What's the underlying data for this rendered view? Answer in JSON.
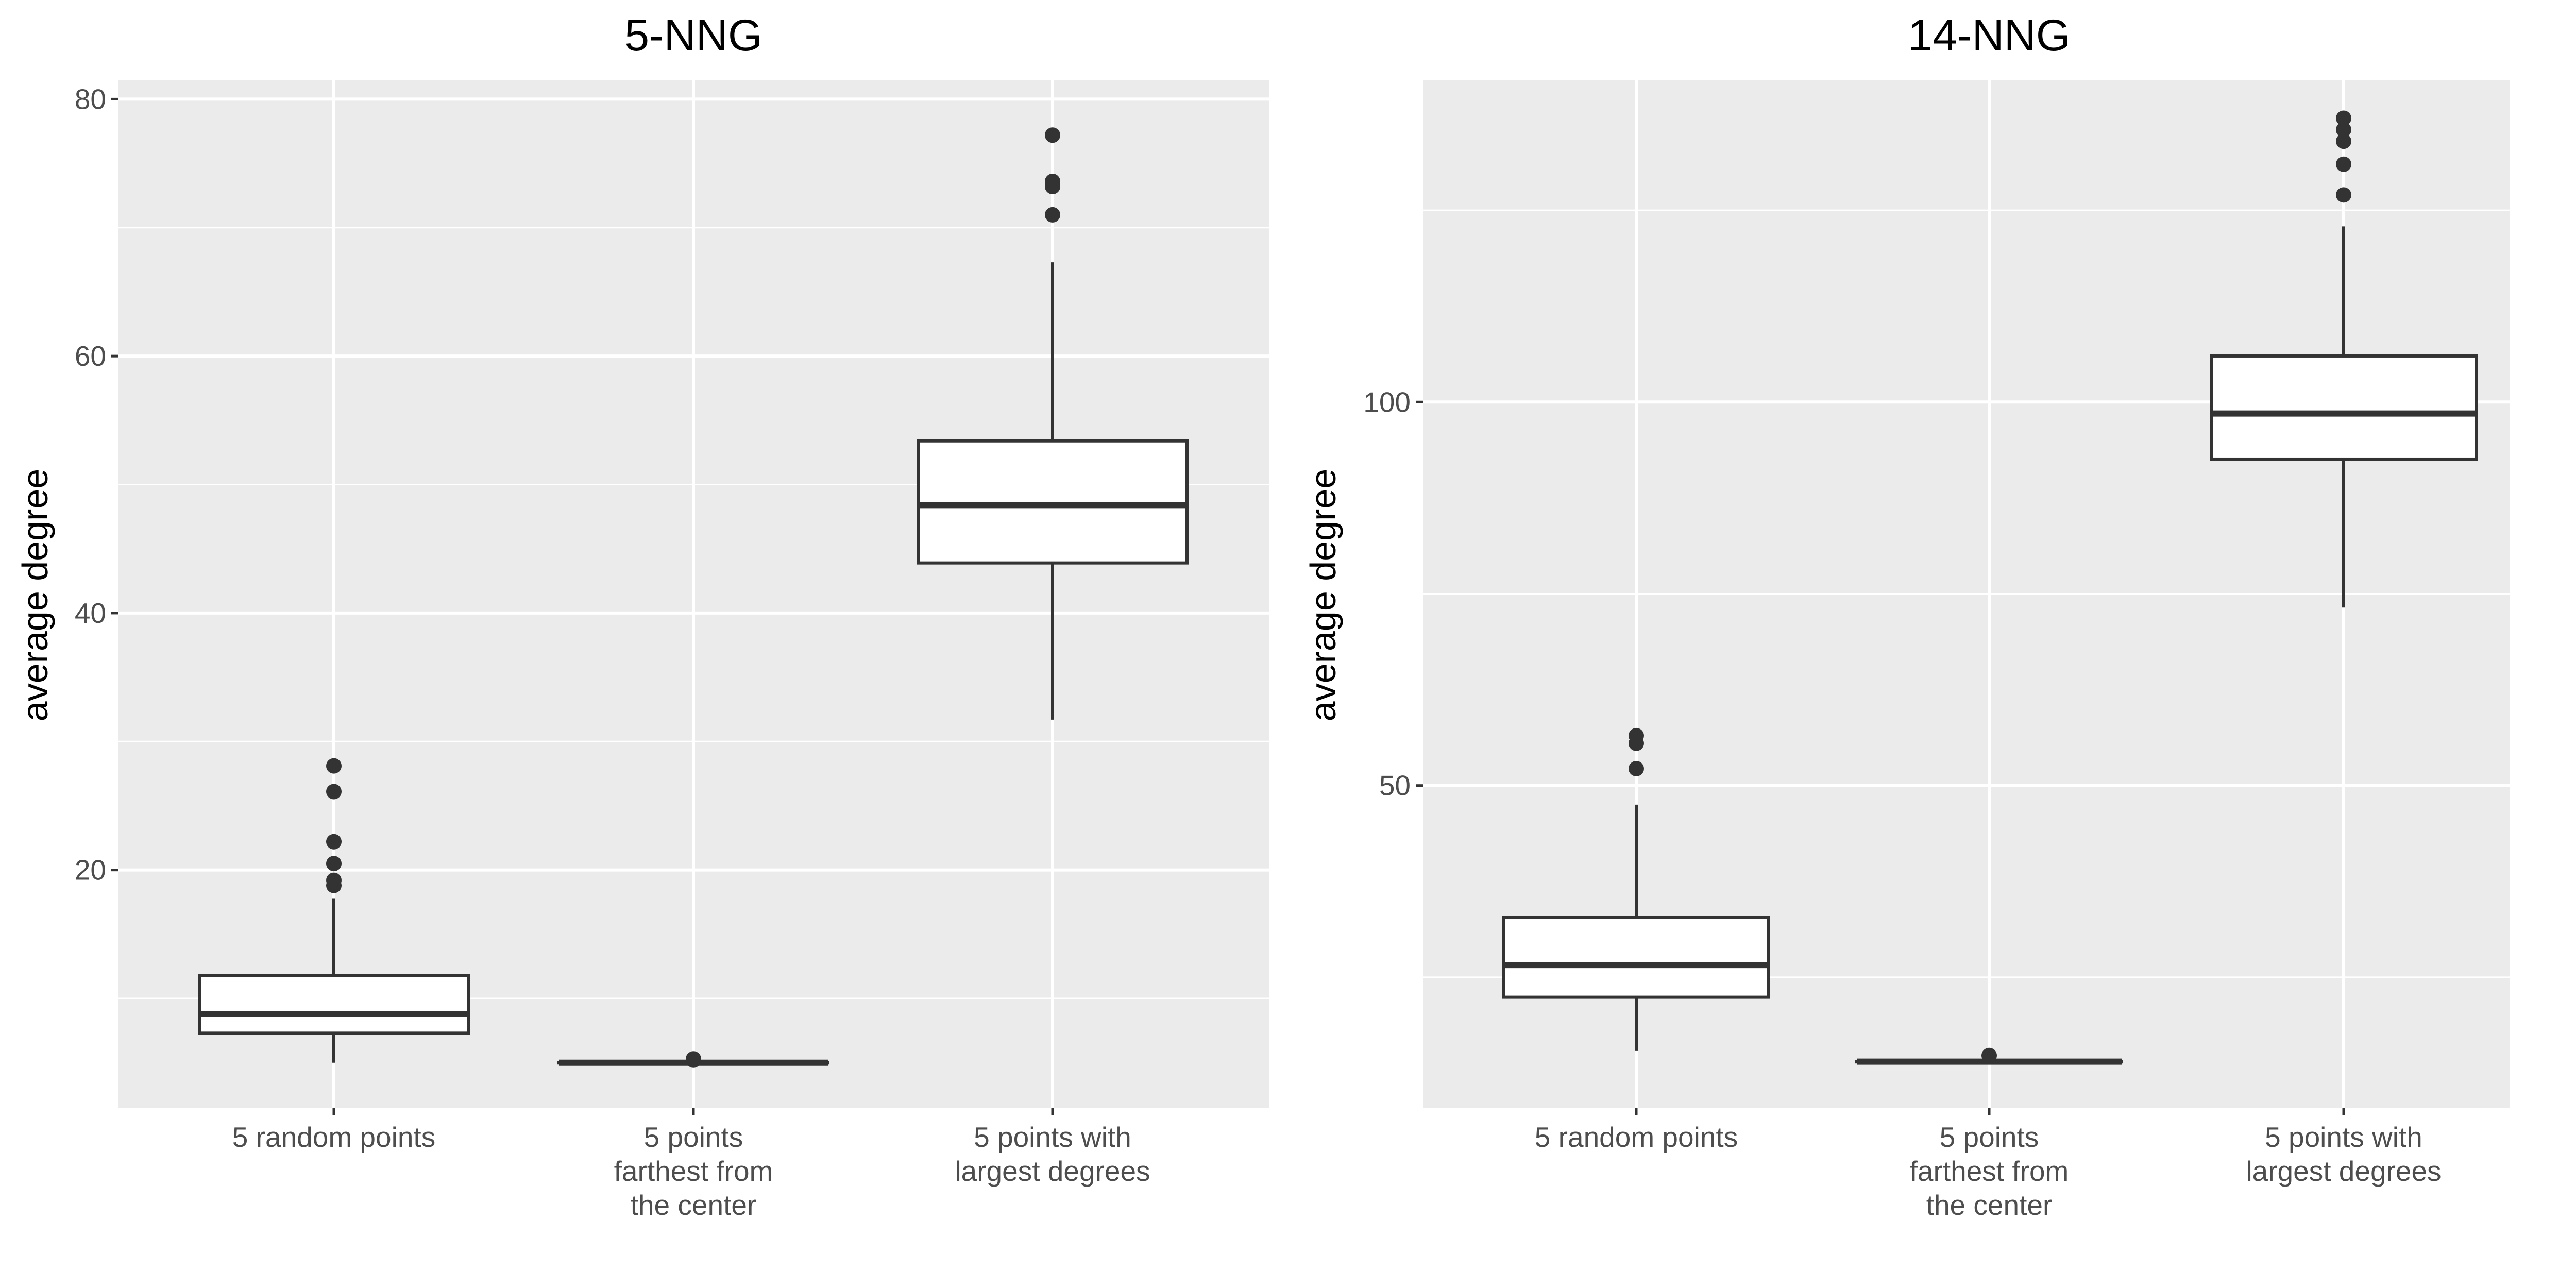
{
  "chart_data": [
    {
      "type": "box",
      "title": "5-NNG",
      "xlabel": "",
      "ylabel": "average degree",
      "ylim": [
        1.5,
        81.5
      ],
      "yticks": [
        20,
        40,
        60,
        80
      ],
      "y_minor_ticks": [
        10,
        30,
        50,
        70
      ],
      "categories": [
        [
          "5 random points"
        ],
        [
          "5 points",
          "farthest from",
          "the center"
        ],
        [
          "5 points with",
          "largest degrees"
        ]
      ],
      "boxes": [
        {
          "lower_whisker": 5.0,
          "q1": 7.3,
          "median": 8.8,
          "q3": 11.8,
          "upper_whisker": 17.8,
          "outliers": [
            18.8,
            19.2,
            20.5,
            22.2,
            26.1,
            28.1
          ]
        },
        {
          "lower_whisker": 5.0,
          "q1": 5.0,
          "median": 5.0,
          "q3": 5.0,
          "upper_whisker": 5.0,
          "outliers": [
            5.2,
            5.3
          ]
        },
        {
          "lower_whisker": 31.7,
          "q1": 43.9,
          "median": 48.4,
          "q3": 53.4,
          "upper_whisker": 67.3,
          "outliers": [
            71.0,
            73.2,
            73.6,
            77.2
          ]
        }
      ]
    },
    {
      "type": "box",
      "title": "14-NNG",
      "xlabel": "",
      "ylabel": "average degree",
      "ylim": [
        8,
        142
      ],
      "yticks": [
        50,
        100
      ],
      "y_minor_ticks": [
        25,
        75,
        125
      ],
      "categories": [
        [
          "5 random points"
        ],
        [
          "5 points",
          "farthest from",
          "the center"
        ],
        [
          "5 points with",
          "largest degrees"
        ]
      ],
      "boxes": [
        {
          "lower_whisker": 15.4,
          "q1": 22.4,
          "median": 26.6,
          "q3": 32.8,
          "upper_whisker": 47.5,
          "outliers": [
            52.2,
            55.5,
            56.5
          ]
        },
        {
          "lower_whisker": 14.0,
          "q1": 14.0,
          "median": 14.0,
          "q3": 14.0,
          "upper_whisker": 14.0,
          "outliers": [
            14.8
          ]
        },
        {
          "lower_whisker": 73.2,
          "q1": 92.5,
          "median": 98.5,
          "q3": 106.0,
          "upper_whisker": 122.9,
          "outliers": [
            127.0,
            131.0,
            134.0,
            135.5,
            137.0
          ]
        }
      ]
    }
  ]
}
